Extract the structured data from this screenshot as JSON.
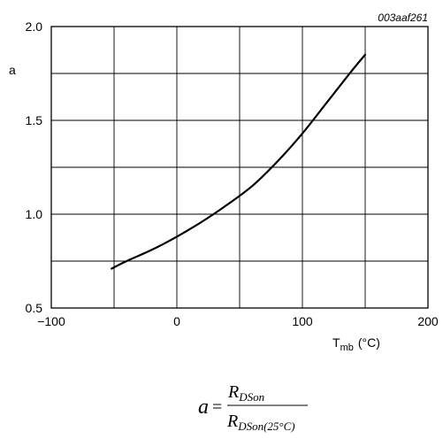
{
  "chart_data": {
    "type": "line",
    "figure_id": "003aaf261",
    "ylabel": "a",
    "xlabel": {
      "main": "T",
      "subscript": "mb",
      "unit": "(°C)"
    },
    "xlim": [
      -100,
      200
    ],
    "ylim": [
      0.5,
      2.0
    ],
    "x_ticks": [
      -100,
      -50,
      0,
      50,
      100,
      150,
      200
    ],
    "y_ticks": [
      0.5,
      0.75,
      1.0,
      1.25,
      1.5,
      1.75,
      2.0
    ],
    "x_tick_labels": [
      "−100",
      "0",
      "100",
      "200"
    ],
    "y_tick_labels": [
      "0.5",
      "1.0",
      "1.5",
      "2.0"
    ],
    "grid": true,
    "series": [
      {
        "x": [
          -52,
          -40,
          -20,
          0,
          20,
          40,
          60,
          80,
          100,
          120,
          140,
          150
        ],
        "y": [
          0.71,
          0.75,
          0.81,
          0.88,
          0.96,
          1.05,
          1.15,
          1.28,
          1.43,
          1.6,
          1.77,
          1.85
        ]
      }
    ]
  },
  "formula": {
    "lhs": "a",
    "equals": "=",
    "numerator": {
      "symbol": "R",
      "subscript": "DSon"
    },
    "denominator": {
      "symbol": "R",
      "subscript": "DSon(25°C)"
    }
  }
}
